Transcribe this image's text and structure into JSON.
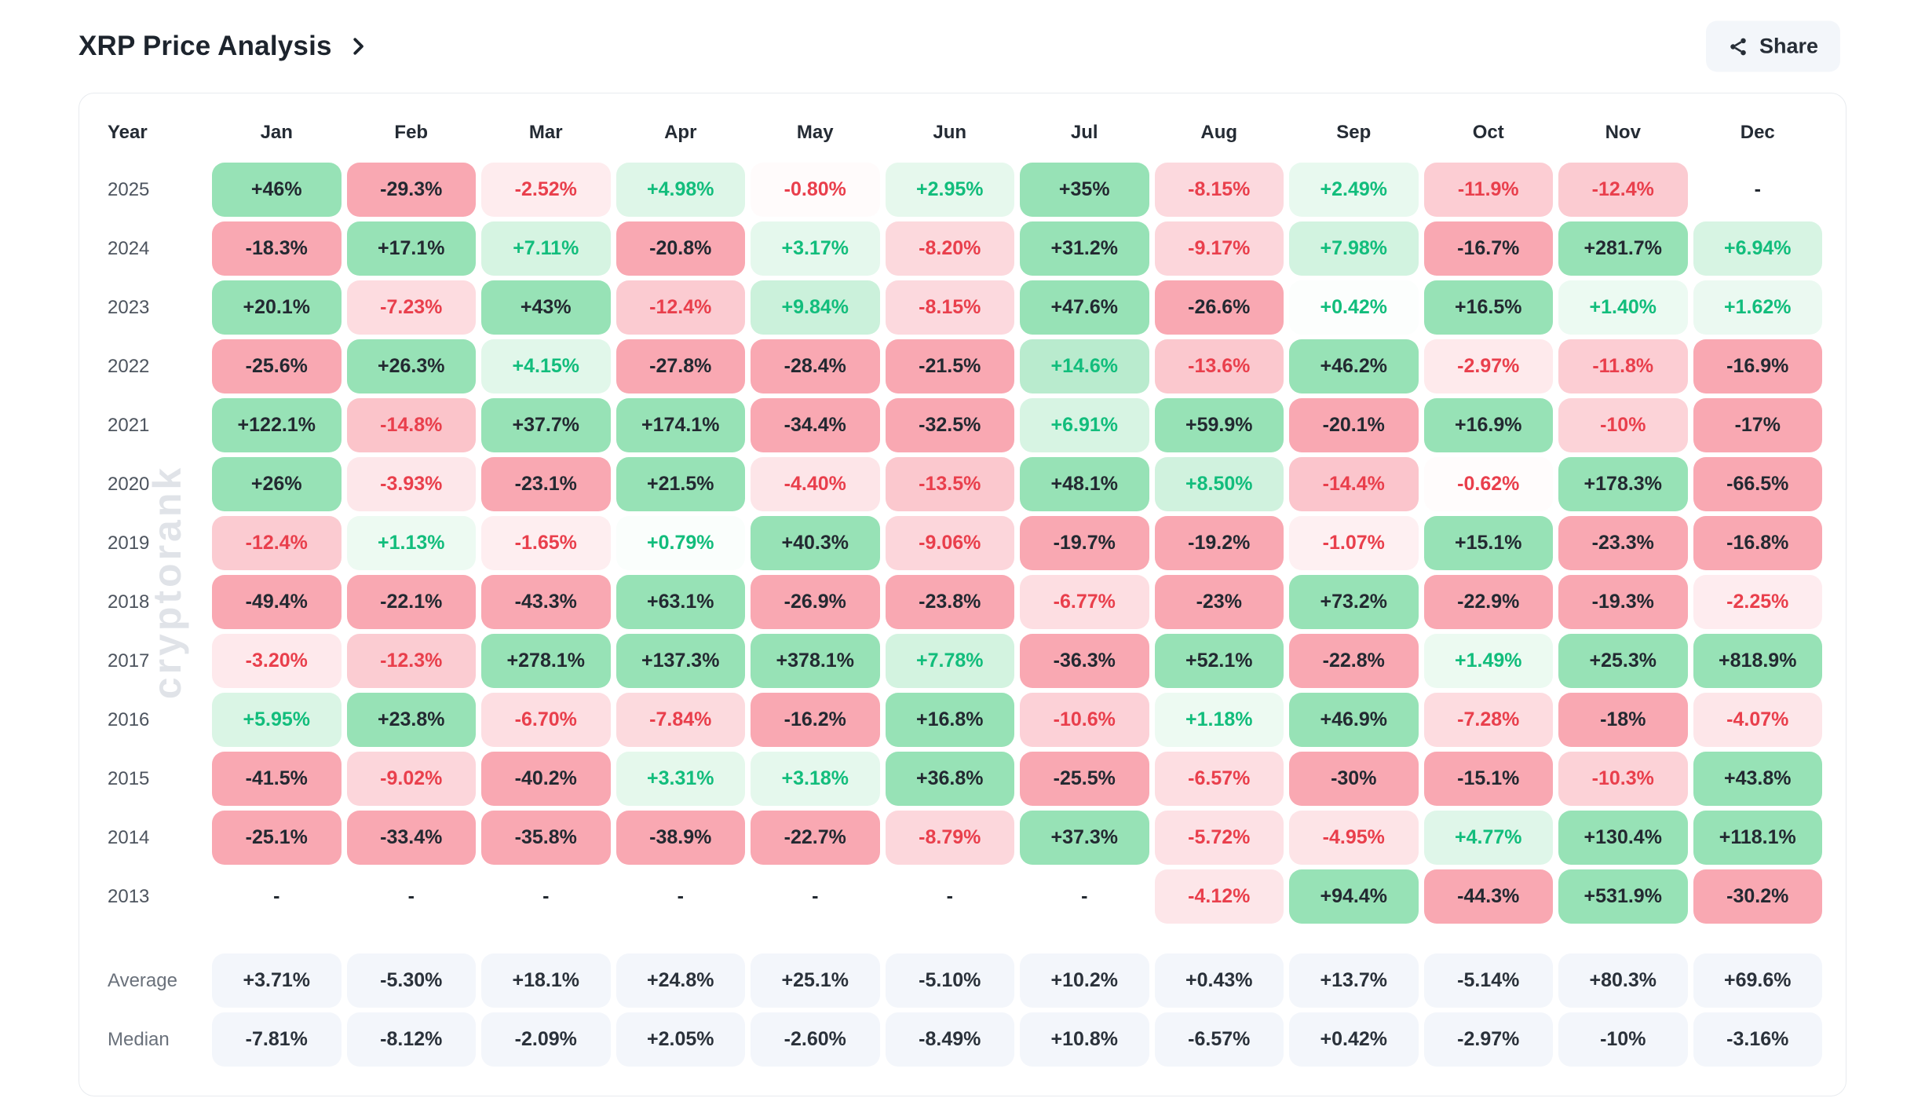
{
  "page": {
    "title": "XRP Price Analysis",
    "share_label": "Share"
  },
  "watermark": "cryptorank",
  "colors": {
    "positive_strong_bg": "#97e2b6",
    "negative_strong_bg": "#f9a8b2",
    "positive_text": "#12bd7c",
    "negative_text": "#e93f4c",
    "dark_text": "#232931",
    "summary_bg": "#f3f6fb",
    "card_border": "#e8ebef",
    "button_bg": "#f3f6fa"
  },
  "table": {
    "empty_cell": "-",
    "columns": [
      "Year",
      "Jan",
      "Feb",
      "Mar",
      "Apr",
      "May",
      "Jun",
      "Jul",
      "Aug",
      "Sep",
      "Oct",
      "Nov",
      "Dec"
    ],
    "rows": [
      {
        "year": "2025",
        "values": [
          "+46%",
          "-29.3%",
          "-2.52%",
          "+4.98%",
          "-0.80%",
          "+2.95%",
          "+35%",
          "-8.15%",
          "+2.49%",
          "-11.9%",
          "-12.4%",
          null
        ]
      },
      {
        "year": "2024",
        "values": [
          "-18.3%",
          "+17.1%",
          "+7.11%",
          "-20.8%",
          "+3.17%",
          "-8.20%",
          "+31.2%",
          "-9.17%",
          "+7.98%",
          "-16.7%",
          "+281.7%",
          "+6.94%"
        ]
      },
      {
        "year": "2023",
        "values": [
          "+20.1%",
          "-7.23%",
          "+43%",
          "-12.4%",
          "+9.84%",
          "-8.15%",
          "+47.6%",
          "-26.6%",
          "+0.42%",
          "+16.5%",
          "+1.40%",
          "+1.62%"
        ]
      },
      {
        "year": "2022",
        "values": [
          "-25.6%",
          "+26.3%",
          "+4.15%",
          "-27.8%",
          "-28.4%",
          "-21.5%",
          "+14.6%",
          "-13.6%",
          "+46.2%",
          "-2.97%",
          "-11.8%",
          "-16.9%"
        ]
      },
      {
        "year": "2021",
        "values": [
          "+122.1%",
          "-14.8%",
          "+37.7%",
          "+174.1%",
          "-34.4%",
          "-32.5%",
          "+6.91%",
          "+59.9%",
          "-20.1%",
          "+16.9%",
          "-10%",
          "-17%"
        ]
      },
      {
        "year": "2020",
        "values": [
          "+26%",
          "-3.93%",
          "-23.1%",
          "+21.5%",
          "-4.40%",
          "-13.5%",
          "+48.1%",
          "+8.50%",
          "-14.4%",
          "-0.62%",
          "+178.3%",
          "-66.5%"
        ]
      },
      {
        "year": "2019",
        "values": [
          "-12.4%",
          "+1.13%",
          "-1.65%",
          "+0.79%",
          "+40.3%",
          "-9.06%",
          "-19.7%",
          "-19.2%",
          "-1.07%",
          "+15.1%",
          "-23.3%",
          "-16.8%"
        ]
      },
      {
        "year": "2018",
        "values": [
          "-49.4%",
          "-22.1%",
          "-43.3%",
          "+63.1%",
          "-26.9%",
          "-23.8%",
          "-6.77%",
          "-23%",
          "+73.2%",
          "-22.9%",
          "-19.3%",
          "-2.25%"
        ]
      },
      {
        "year": "2017",
        "values": [
          "-3.20%",
          "-12.3%",
          "+278.1%",
          "+137.3%",
          "+378.1%",
          "+7.78%",
          "-36.3%",
          "+52.1%",
          "-22.8%",
          "+1.49%",
          "+25.3%",
          "+818.9%"
        ]
      },
      {
        "year": "2016",
        "values": [
          "+5.95%",
          "+23.8%",
          "-6.70%",
          "-7.84%",
          "-16.2%",
          "+16.8%",
          "-10.6%",
          "+1.18%",
          "+46.9%",
          "-7.28%",
          "-18%",
          "-4.07%"
        ]
      },
      {
        "year": "2015",
        "values": [
          "-41.5%",
          "-9.02%",
          "-40.2%",
          "+3.31%",
          "+3.18%",
          "+36.8%",
          "-25.5%",
          "-6.57%",
          "-30%",
          "-15.1%",
          "-10.3%",
          "+43.8%"
        ]
      },
      {
        "year": "2014",
        "values": [
          "-25.1%",
          "-33.4%",
          "-35.8%",
          "-38.9%",
          "-22.7%",
          "-8.79%",
          "+37.3%",
          "-5.72%",
          "-4.95%",
          "+4.77%",
          "+130.4%",
          "+118.1%"
        ]
      },
      {
        "year": "2013",
        "values": [
          null,
          null,
          null,
          null,
          null,
          null,
          null,
          "-4.12%",
          "+94.4%",
          "-44.3%",
          "+531.9%",
          "-30.2%"
        ]
      }
    ],
    "summary": [
      {
        "label": "Average",
        "values": [
          "+3.71%",
          "-5.30%",
          "+18.1%",
          "+24.8%",
          "+25.1%",
          "-5.10%",
          "+10.2%",
          "+0.43%",
          "+13.7%",
          "-5.14%",
          "+80.3%",
          "+69.6%"
        ]
      },
      {
        "label": "Median",
        "values": [
          "-7.81%",
          "-8.12%",
          "-2.09%",
          "+2.05%",
          "-2.60%",
          "-8.49%",
          "+10.8%",
          "-6.57%",
          "+0.42%",
          "-2.97%",
          "-10%",
          "-3.16%"
        ]
      }
    ]
  },
  "chart_data": {
    "type": "heatmap",
    "title": "XRP Price Analysis",
    "unit": "% monthly return",
    "columns": [
      "Jan",
      "Feb",
      "Mar",
      "Apr",
      "May",
      "Jun",
      "Jul",
      "Aug",
      "Sep",
      "Oct",
      "Nov",
      "Dec"
    ],
    "rows": [
      {
        "label": "2025",
        "values": [
          46,
          -29.3,
          -2.52,
          4.98,
          -0.8,
          2.95,
          35,
          -8.15,
          2.49,
          -11.9,
          -12.4,
          null
        ]
      },
      {
        "label": "2024",
        "values": [
          -18.3,
          17.1,
          7.11,
          -20.8,
          3.17,
          -8.2,
          31.2,
          -9.17,
          7.98,
          -16.7,
          281.7,
          6.94
        ]
      },
      {
        "label": "2023",
        "values": [
          20.1,
          -7.23,
          43,
          -12.4,
          9.84,
          -8.15,
          47.6,
          -26.6,
          0.42,
          16.5,
          1.4,
          1.62
        ]
      },
      {
        "label": "2022",
        "values": [
          -25.6,
          26.3,
          4.15,
          -27.8,
          -28.4,
          -21.5,
          14.6,
          -13.6,
          46.2,
          -2.97,
          -11.8,
          -16.9
        ]
      },
      {
        "label": "2021",
        "values": [
          122.1,
          -14.8,
          37.7,
          174.1,
          -34.4,
          -32.5,
          6.91,
          59.9,
          -20.1,
          16.9,
          -10,
          -17
        ]
      },
      {
        "label": "2020",
        "values": [
          26,
          -3.93,
          -23.1,
          21.5,
          -4.4,
          -13.5,
          48.1,
          8.5,
          -14.4,
          -0.62,
          178.3,
          -66.5
        ]
      },
      {
        "label": "2019",
        "values": [
          -12.4,
          1.13,
          -1.65,
          0.79,
          40.3,
          -9.06,
          -19.7,
          -19.2,
          -1.07,
          15.1,
          -23.3,
          -16.8
        ]
      },
      {
        "label": "2018",
        "values": [
          -49.4,
          -22.1,
          -43.3,
          63.1,
          -26.9,
          -23.8,
          -6.77,
          -23,
          73.2,
          -22.9,
          -19.3,
          -2.25
        ]
      },
      {
        "label": "2017",
        "values": [
          -3.2,
          -12.3,
          278.1,
          137.3,
          378.1,
          7.78,
          -36.3,
          52.1,
          -22.8,
          1.49,
          25.3,
          818.9
        ]
      },
      {
        "label": "2016",
        "values": [
          5.95,
          23.8,
          -6.7,
          -7.84,
          -16.2,
          16.8,
          -10.6,
          1.18,
          46.9,
          -7.28,
          -18,
          -4.07
        ]
      },
      {
        "label": "2015",
        "values": [
          -41.5,
          -9.02,
          -40.2,
          3.31,
          3.18,
          36.8,
          -25.5,
          -6.57,
          -30,
          -15.1,
          -10.3,
          43.8
        ]
      },
      {
        "label": "2014",
        "values": [
          -25.1,
          -33.4,
          -35.8,
          -38.9,
          -22.7,
          -8.79,
          37.3,
          -5.72,
          -4.95,
          4.77,
          130.4,
          118.1
        ]
      },
      {
        "label": "2013",
        "values": [
          null,
          null,
          null,
          null,
          null,
          null,
          null,
          -4.12,
          94.4,
          -44.3,
          531.9,
          -30.2
        ]
      }
    ],
    "summary_rows": [
      {
        "label": "Average",
        "values": [
          3.71,
          -5.3,
          18.1,
          24.8,
          25.1,
          -5.1,
          10.2,
          0.43,
          13.7,
          -5.14,
          80.3,
          69.6
        ]
      },
      {
        "label": "Median",
        "values": [
          -7.81,
          -8.12,
          -2.09,
          2.05,
          -2.6,
          -8.49,
          10.8,
          -6.57,
          0.42,
          -2.97,
          -10,
          -3.16
        ]
      }
    ],
    "layout": {
      "color_rule": "green positive / red negative, intensity scales with |value| up to ~15%, |value|>=15% gets solid tint with dark text",
      "legend": false
    }
  }
}
